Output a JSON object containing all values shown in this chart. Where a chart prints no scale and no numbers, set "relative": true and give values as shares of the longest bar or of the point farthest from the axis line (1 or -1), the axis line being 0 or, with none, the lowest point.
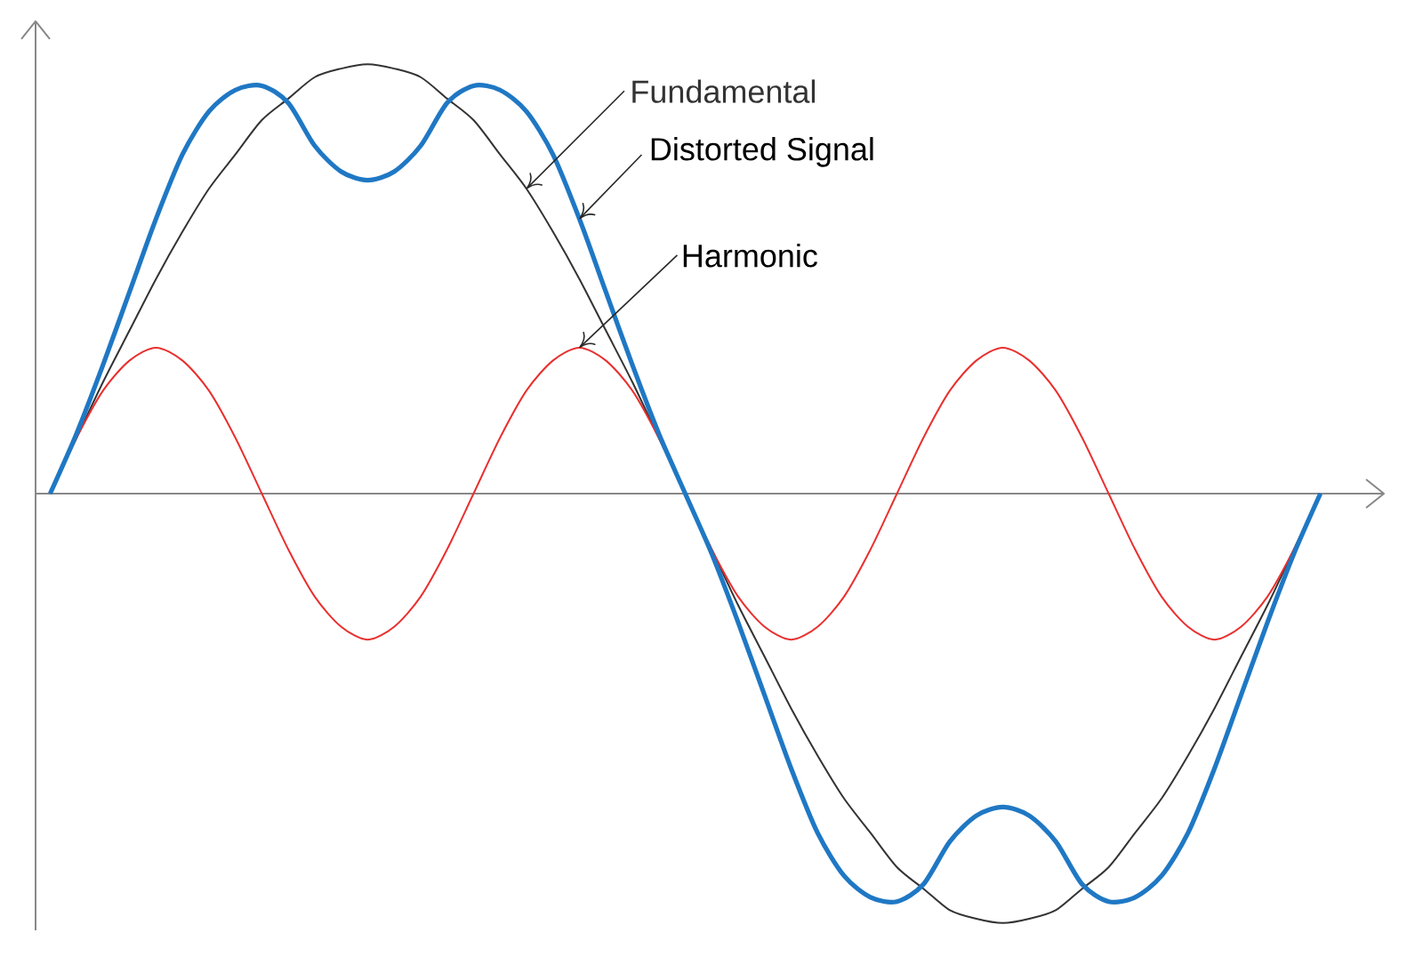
{
  "chart_data": {
    "type": "line",
    "relative": true,
    "categories": [
      null,
      null,
      null,
      null,
      null,
      null,
      null,
      null,
      null,
      null,
      null,
      null,
      null,
      null,
      null,
      null,
      null,
      null,
      null,
      null,
      null,
      null,
      null,
      null,
      null,
      null,
      null,
      null,
      null,
      null,
      null,
      null,
      null,
      null,
      null,
      null,
      null,
      null,
      null,
      null,
      null,
      null,
      null,
      null,
      null,
      null,
      null,
      null,
      null
    ],
    "series": [
      {
        "name": "Fundamental",
        "color": "#333333",
        "values": [
          0,
          0.13,
          0.26,
          0.38,
          0.5,
          0.61,
          0.71,
          0.79,
          0.87,
          0.92,
          0.97,
          0.99,
          1,
          0.99,
          0.97,
          0.92,
          0.87,
          0.79,
          0.71,
          0.61,
          0.5,
          0.38,
          0.26,
          0.13,
          0,
          -0.13,
          -0.26,
          -0.38,
          -0.5,
          -0.61,
          -0.71,
          -0.79,
          -0.87,
          -0.92,
          -0.97,
          -0.99,
          -1,
          -0.99,
          -0.97,
          -0.92,
          -0.87,
          -0.79,
          -0.71,
          -0.61,
          -0.5,
          -0.38,
          -0.26,
          -0.13,
          0
        ]
      },
      {
        "name": "Distorted Signal",
        "color": "#1f78c4",
        "values": [
          0,
          0.14,
          0.3,
          0.47,
          0.64,
          0.79,
          0.89,
          0.94,
          0.95,
          0.91,
          0.81,
          0.75,
          0.73,
          0.75,
          0.81,
          0.91,
          0.95,
          0.94,
          0.89,
          0.79,
          0.64,
          0.47,
          0.3,
          0.14,
          0,
          -0.14,
          -0.3,
          -0.47,
          -0.64,
          -0.79,
          -0.89,
          -0.94,
          -0.95,
          -0.91,
          -0.81,
          -0.75,
          -0.73,
          -0.75,
          -0.81,
          -0.91,
          -0.95,
          -0.94,
          -0.89,
          -0.79,
          -0.64,
          -0.47,
          -0.3,
          -0.14,
          0
        ]
      },
      {
        "name": "Harmonic",
        "color": "#e8302f",
        "values": [
          0,
          0.13,
          0.24,
          0.31,
          0.34,
          0.31,
          0.24,
          0.13,
          0,
          -0.13,
          -0.24,
          -0.31,
          -0.34,
          -0.31,
          -0.24,
          -0.13,
          0,
          0.13,
          0.24,
          0.31,
          0.34,
          0.31,
          0.24,
          0.13,
          0,
          -0.13,
          -0.24,
          -0.31,
          -0.34,
          -0.31,
          -0.24,
          -0.13,
          0,
          0.13,
          0.24,
          0.31,
          0.34,
          0.31,
          0.24,
          0.13,
          0,
          -0.13,
          -0.24,
          -0.31,
          -0.34,
          -0.31,
          -0.24,
          -0.13,
          0
        ]
      }
    ]
  }
}
